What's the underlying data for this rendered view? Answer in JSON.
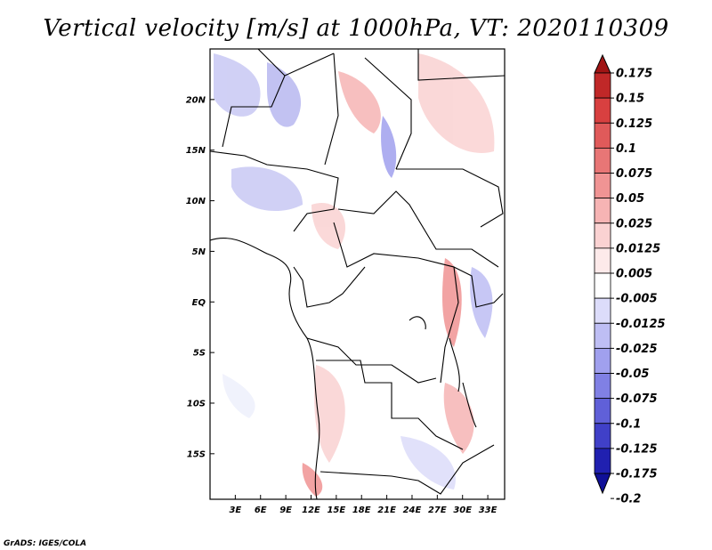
{
  "chart_data": {
    "type": "heatmap",
    "title": "Vertical velocity [m/s] at 1000hPa, VT: 2020110309",
    "xlabel": "",
    "ylabel": "",
    "x_range_deg": [
      0,
      35
    ],
    "y_range_deg": [
      -19.5,
      25
    ],
    "x_ticks": [
      {
        "value": 3,
        "label": "3E"
      },
      {
        "value": 6,
        "label": "6E"
      },
      {
        "value": 9,
        "label": "9E"
      },
      {
        "value": 12,
        "label": "12E"
      },
      {
        "value": 15,
        "label": "15E"
      },
      {
        "value": 18,
        "label": "18E"
      },
      {
        "value": 21,
        "label": "21E"
      },
      {
        "value": 24,
        "label": "24E"
      },
      {
        "value": 27,
        "label": "27E"
      },
      {
        "value": 30,
        "label": "30E"
      },
      {
        "value": 33,
        "label": "33E"
      }
    ],
    "y_ticks": [
      {
        "value": 20,
        "label": "20N"
      },
      {
        "value": 15,
        "label": "15N"
      },
      {
        "value": 10,
        "label": "10N"
      },
      {
        "value": 5,
        "label": "5N"
      },
      {
        "value": 0,
        "label": "EQ"
      },
      {
        "value": -5,
        "label": "5S"
      },
      {
        "value": -10,
        "label": "10S"
      },
      {
        "value": -15,
        "label": "15S"
      }
    ],
    "colorbar": {
      "levels": [
        "0.175",
        "0.15",
        "0.125",
        "0.1",
        "0.075",
        "0.05",
        "0.025",
        "0.0125",
        "0.005",
        "-0.005",
        "-0.0125",
        "-0.025",
        "-0.05",
        "-0.075",
        "-0.1",
        "-0.125",
        "-0.175",
        "-0.2"
      ],
      "colors": [
        "#a01414",
        "#c02828",
        "#d84040",
        "#e05a5a",
        "#e87676",
        "#f09494",
        "#f6b4b4",
        "#fad2d2",
        "#fdeaea",
        "#ffffff",
        "#dcdcfa",
        "#bebef4",
        "#a0a0ee",
        "#8080e4",
        "#6060d8",
        "#4040c8",
        "#2020b0",
        "#101098"
      ]
    },
    "grid": false,
    "legend": "right (colorbar)"
  },
  "credit": "GrADS: IGES/COLA"
}
